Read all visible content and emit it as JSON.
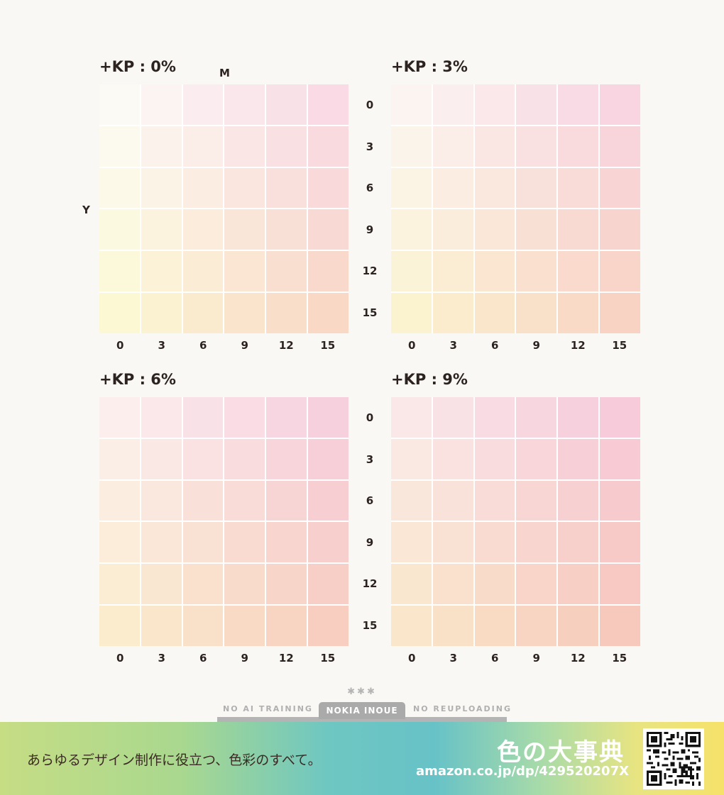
{
  "panels": [
    {
      "title": "+KP : 0%",
      "kp": 0
    },
    {
      "title": "+KP : 3%",
      "kp": 3
    },
    {
      "title": "+KP : 6%",
      "kp": 6
    },
    {
      "title": "+KP : 9%",
      "kp": 9
    }
  ],
  "axes": {
    "m_label": "M",
    "y_label": "Y",
    "m_ticks": [
      "0",
      "3",
      "6",
      "9",
      "12",
      "15"
    ],
    "y_ticks": [
      "0",
      "3",
      "6",
      "9",
      "12",
      "15"
    ]
  },
  "credit": {
    "stars": "✱✱✱",
    "left": "NO AI TRAINING",
    "center": "NOKIA INOUE",
    "right": "NO REUPLOADING"
  },
  "banner": {
    "tagline": "あらゆるデザイン制作に役立つ、色彩のすべて。",
    "title": "色の大事典",
    "url": "amazon.co.jp/dp/429520207X"
  },
  "colors": {
    "background": "#faf8f4",
    "text": "#2c2320",
    "magenta_target": "#e6007e",
    "yellow_target": "#fff100",
    "kp_target": "#f4a3c0"
  }
}
